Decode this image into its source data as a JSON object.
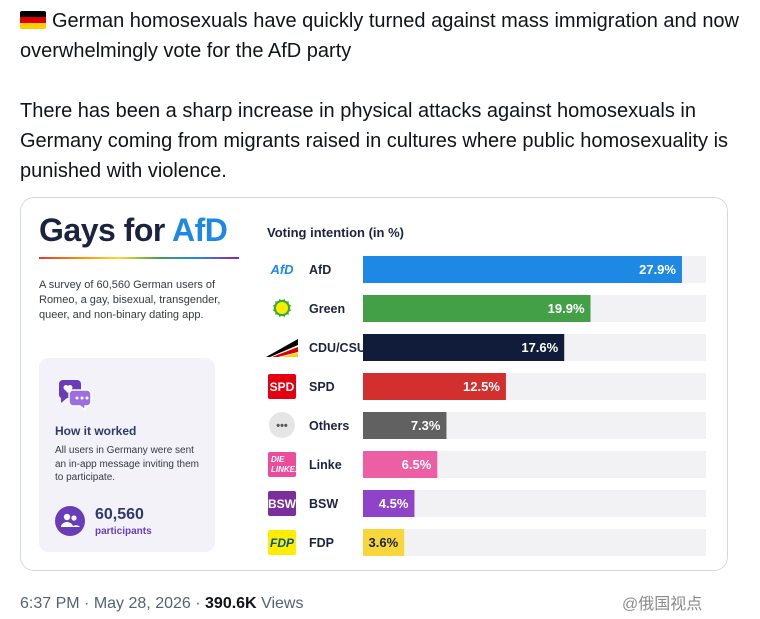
{
  "tweet": {
    "line1": "German homosexuals have quickly turned against mass immigration and now overwhelmingly vote for the AfD party",
    "line2": "There has been a sharp increase in physical attacks against homosexuals in Germany coming from migrants raised in cultures where public homosexuality is punished with violence.",
    "time": "6:37 PM",
    "date": "May 28, 2026",
    "views_count": "390.6K",
    "views_label": "Views"
  },
  "infographic": {
    "title_main": "Gays for ",
    "title_accent": "AfD",
    "description": "A survey of 60,560 German users of Romeo, a gay, bisexual, transgender, queer, and non-binary dating app.",
    "how_title": "How it worked",
    "how_desc": "All users in Germany were sent an in-app message inviting them to participate.",
    "participants_count": "60,560",
    "participants_label": "participants",
    "chart_heading": "Voting intention (in %)"
  },
  "chart_data": {
    "type": "bar",
    "orientation": "horizontal",
    "title": "Voting intention (in %)",
    "categories": [
      "AfD",
      "Green",
      "CDU/CSU",
      "SPD",
      "Others",
      "Linke",
      "BSW",
      "FDP"
    ],
    "values": [
      27.9,
      19.9,
      17.6,
      12.5,
      7.3,
      6.5,
      4.5,
      3.6
    ],
    "value_labels": [
      "27.9%",
      "19.9%",
      "17.6%",
      "12.5%",
      "7.3%",
      "6.5%",
      "4.5%",
      "3.6%"
    ],
    "xlim": [
      0,
      30
    ],
    "colors": [
      "#1e88e5",
      "#43a047",
      "#101c3a",
      "#d32f2f",
      "#616161",
      "#ec5fa2",
      "#8e44c8",
      "#f6d63a"
    ],
    "label_colors": [
      "#ffffff",
      "#ffffff",
      "#ffffff",
      "#ffffff",
      "#ffffff",
      "#ffffff",
      "#ffffff",
      "#1c2340"
    ],
    "logo_texts": [
      "AfD",
      "",
      "",
      "SPD",
      "•••",
      "DIE LINKE.",
      "BSW",
      "FDP"
    ],
    "logo_colors": [
      "#1e88e5",
      "#3aa935",
      "#000000",
      "#e3000f",
      "#e5e5e5",
      "#ec4d9a",
      "#7b2f9c",
      "#ffed00"
    ],
    "grid": false,
    "legend": "none"
  },
  "watermark": "@俄国视点",
  "colors": {
    "brand_blue": "#1e88e5",
    "brand_navy": "#1c2340",
    "purple": "#6a3db8",
    "muted": "#536471"
  }
}
